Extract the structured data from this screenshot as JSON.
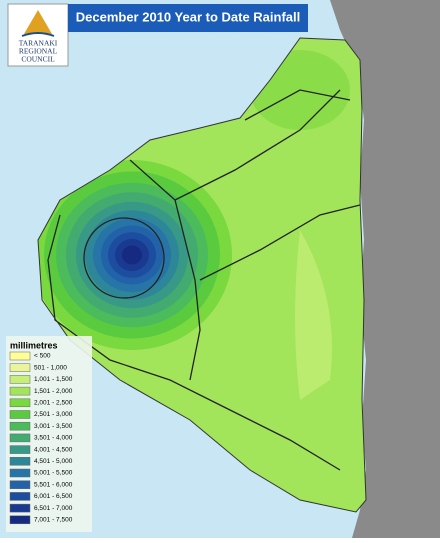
{
  "header": {
    "title": "December 2010 Year to Date Rainfall",
    "logo": [
      "TARANAKI",
      "REGIONAL",
      "COUNCIL"
    ]
  },
  "legend": {
    "title": "millimetres",
    "items": [
      {
        "label": "< 500",
        "color": "#ffff99"
      },
      {
        "label": "501 - 1,000",
        "color": "#e8f59a"
      },
      {
        "label": "1,001 - 1,500",
        "color": "#c6ee78"
      },
      {
        "label": "1,501 - 2,000",
        "color": "#a2e45a"
      },
      {
        "label": "2,001 - 2,500",
        "color": "#7ad93e"
      },
      {
        "label": "2,501 - 3,000",
        "color": "#5acb3e"
      },
      {
        "label": "3,001 - 3,500",
        "color": "#4cbb5c"
      },
      {
        "label": "3,501 - 4,000",
        "color": "#43aa70"
      },
      {
        "label": "4,001 - 4,500",
        "color": "#389986"
      },
      {
        "label": "4,501 - 5,000",
        "color": "#2e8798"
      },
      {
        "label": "5,001 - 5,500",
        "color": "#2775a6"
      },
      {
        "label": "5,501 - 6,000",
        "color": "#2262a8"
      },
      {
        "label": "6,001 - 6,500",
        "color": "#1d4d9e"
      },
      {
        "label": "6,501 - 7,000",
        "color": "#1a3a92"
      },
      {
        "label": "7,001 - 7,500",
        "color": "#152a80"
      }
    ]
  }
}
